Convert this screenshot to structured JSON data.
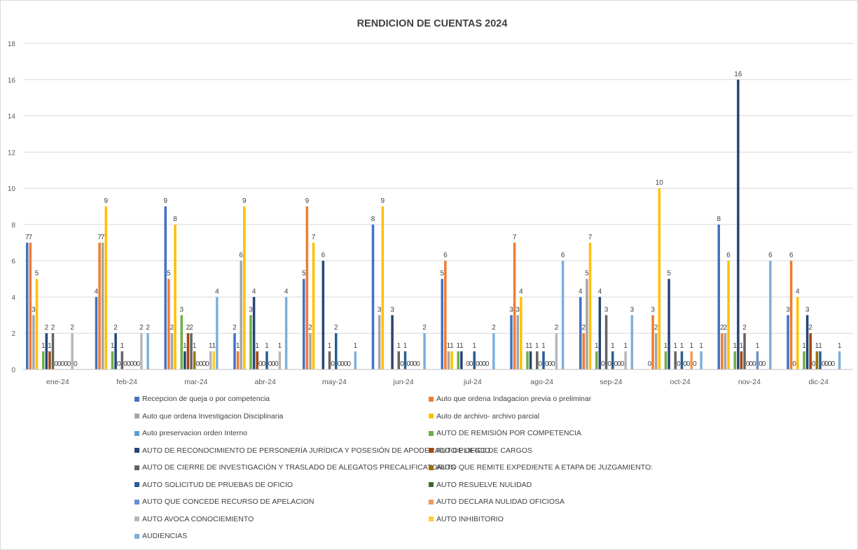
{
  "chart_data": {
    "type": "bar",
    "title": "RENDICION DE CUENTAS 2024",
    "xlabel": "",
    "ylabel": "",
    "ylim": [
      0,
      18
    ],
    "yticks": [
      0,
      2,
      4,
      6,
      8,
      10,
      12,
      14,
      16,
      18
    ],
    "grid": true,
    "legend_position": "bottom",
    "categories": [
      "ene-24",
      "feb-24",
      "mar-24",
      "abr-24",
      "may-24",
      "jun-24",
      "jul-24",
      "ago-24",
      "sep-24",
      "oct-24",
      "nov-24",
      "dic-24"
    ],
    "series": [
      {
        "name": "Recepcion de queja o por competencia",
        "color": "#4472C4",
        "values": [
          7,
          4,
          9,
          2,
          5,
          8,
          5,
          3,
          4,
          0,
          8,
          3
        ]
      },
      {
        "name": "Auto que ordena Indagacion previa o preliminar",
        "color": "#ED7D31",
        "values": [
          7,
          7,
          5,
          1,
          9,
          null,
          6,
          7,
          2,
          3,
          2,
          6
        ]
      },
      {
        "name": "Auto que ordena Investigacion Disciplinaria",
        "color": "#A5A5A5",
        "values": [
          3,
          7,
          2,
          6,
          2,
          3,
          1,
          3,
          5,
          2,
          2,
          0
        ]
      },
      {
        "name": "Auto de archivo- archivo parcial",
        "color": "#FFC000",
        "values": [
          5,
          9,
          8,
          9,
          7,
          9,
          1,
          4,
          7,
          10,
          6,
          4
        ]
      },
      {
        "name": "Auto preservacion orden Interno",
        "color": "#5B9BD5",
        "values": [
          null,
          null,
          null,
          null,
          null,
          null,
          null,
          null,
          null,
          null,
          null,
          null
        ]
      },
      {
        "name": "AUTO DE REMISIÓN POR COMPETENCIA",
        "color": "#70AD47",
        "values": [
          1,
          1,
          3,
          3,
          null,
          null,
          1,
          1,
          1,
          1,
          1,
          1
        ]
      },
      {
        "name": "AUTO DE RECONOCIMIENTO DE PERSONERÍA JURÍDICA Y POSESIÓN DE APODERADO DE OFICIO.",
        "color": "#264478",
        "values": [
          2,
          2,
          1,
          4,
          6,
          3,
          1,
          1,
          4,
          5,
          16,
          3
        ]
      },
      {
        "name": "AUTO PLIEGO DE CARGOS",
        "color": "#9E480E",
        "values": [
          1,
          0,
          2,
          1,
          null,
          null,
          null,
          null,
          0,
          null,
          1,
          2
        ]
      },
      {
        "name": "AUTO DE CIERRE DE INVESTIGACIÓN Y TRASLADO DE ALEGATOS PRECALIFICATORIOS",
        "color": "#636363",
        "values": [
          2,
          1,
          2,
          0,
          1,
          1,
          0,
          1,
          3,
          1,
          2,
          0
        ]
      },
      {
        "name": "AUTO QUE REMITE EXPEDIENTE A ETAPA DE JUZGAMIENTO:",
        "color": "#997300",
        "values": [
          0,
          0,
          1,
          0,
          0,
          0,
          0,
          0,
          0,
          0,
          0,
          1
        ]
      },
      {
        "name": "AUTO SOLICITUD DE PRUEBAS DE OFICIO",
        "color": "#255E91",
        "values": [
          0,
          0,
          0,
          1,
          2,
          1,
          1,
          1,
          1,
          1,
          0,
          1
        ]
      },
      {
        "name": "AUTO RESUELVE NULIDAD",
        "color": "#43682B",
        "values": [
          0,
          0,
          0,
          0,
          0,
          0,
          0,
          0,
          0,
          0,
          0,
          0
        ]
      },
      {
        "name": "AUTO QUE CONCEDE RECURSO DE APELACION",
        "color": "#698ED0",
        "values": [
          0,
          0,
          0,
          0,
          0,
          0,
          0,
          0,
          0,
          0,
          1,
          0
        ]
      },
      {
        "name": "AUTO DECLARA NULIDAD OFICIOSA",
        "color": "#F1975A",
        "values": [
          0,
          0,
          0,
          0,
          0,
          0,
          0,
          0,
          0,
          1,
          0,
          0
        ]
      },
      {
        "name": "AUTO AVOCA CONOCIEMIENTO",
        "color": "#B7B7B7",
        "values": [
          2,
          2,
          1,
          1,
          0,
          0,
          0,
          2,
          1,
          0,
          0,
          0
        ]
      },
      {
        "name": "AUTO INHIBITORIO",
        "color": "#FFCD33",
        "values": [
          0,
          null,
          1,
          null,
          null,
          null,
          null,
          null,
          null,
          null,
          null,
          null
        ]
      },
      {
        "name": "AUDIENCIAS",
        "color": "#7CAFDD",
        "values": [
          null,
          2,
          4,
          4,
          1,
          2,
          2,
          6,
          3,
          1,
          6,
          1
        ]
      }
    ]
  }
}
